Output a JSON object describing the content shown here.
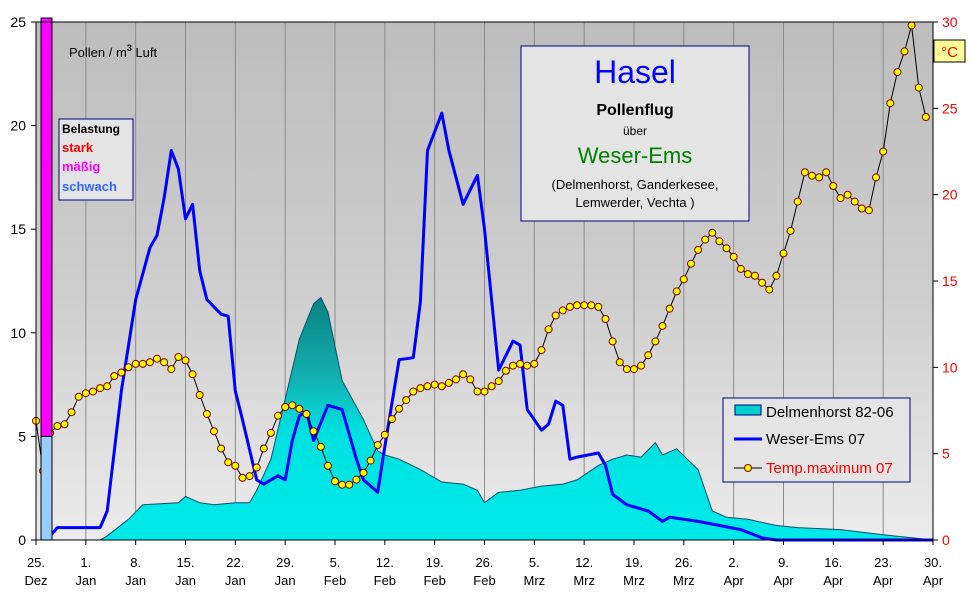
{
  "chart_data": {
    "type": "area",
    "title": "Hasel",
    "info_box": {
      "title": "Hasel",
      "line1": "Pollenflug",
      "line2": "über",
      "region": "Weser-Ems",
      "places1": "(Delmenhorst, Ganderkesee,",
      "places2": "Lemwerder, Vechta )"
    },
    "ylabel": "Pollen / m³ Luft",
    "ylabel_main": "Pollen / m",
    "ylabel_sup": "3",
    "ylabel_tail": " Luft",
    "y2label": "°C",
    "ylim": [
      0,
      25
    ],
    "y2lim": [
      0,
      30
    ],
    "y_ticks": [
      "0",
      "5",
      "10",
      "15",
      "20",
      "25"
    ],
    "y2_ticks": [
      "0",
      "5",
      "10",
      "15",
      "20",
      "25",
      "30"
    ],
    "grid": "vertical",
    "x_ticks": [
      {
        "date": "25.12",
        "label": "25.",
        "month": "Dez"
      },
      {
        "date": "1.1",
        "label": "1.",
        "month": "Jan"
      },
      {
        "date": "8.1",
        "label": "8.",
        "month": "Jan"
      },
      {
        "date": "15.1",
        "label": "15.",
        "month": "Jan"
      },
      {
        "date": "22.1",
        "label": "22.",
        "month": "Jan"
      },
      {
        "date": "29.1",
        "label": "29.",
        "month": "Jan"
      },
      {
        "date": "5.2",
        "label": "5.",
        "month": "Feb"
      },
      {
        "date": "12.2",
        "label": "12.",
        "month": "Feb"
      },
      {
        "date": "19.2",
        "label": "19.",
        "month": "Feb"
      },
      {
        "date": "26.2",
        "label": "26.",
        "month": "Feb"
      },
      {
        "date": "5.3",
        "label": "5.",
        "month": "Mrz"
      },
      {
        "date": "12.3",
        "label": "12.",
        "month": "Mrz"
      },
      {
        "date": "19.3",
        "label": "19.",
        "month": "Mrz"
      },
      {
        "date": "26.3",
        "label": "26.",
        "month": "Mrz"
      },
      {
        "date": "2.4",
        "label": "2.",
        "month": "Apr"
      },
      {
        "date": "9.4",
        "label": "9.",
        "month": "Apr"
      },
      {
        "date": "16.4",
        "label": "16.",
        "month": "Apr"
      },
      {
        "date": "23.4",
        "label": "23.",
        "month": "Apr"
      },
      {
        "date": "30.4",
        "label": "30.",
        "month": "Apr"
      }
    ],
    "belastung": {
      "title": "Belastung",
      "levels": [
        {
          "label": "stark",
          "color": "#ff0000"
        },
        {
          "label": "mäßig",
          "color": "#ff00ff"
        },
        {
          "label": "schwach",
          "color": "#3366ff"
        }
      ],
      "scale_bar": [
        {
          "from": 0,
          "to": 5,
          "color": "#99ccff"
        },
        {
          "from": 5,
          "to": 25,
          "color": "#ff00ff"
        }
      ]
    },
    "legend_position": "bottom-right",
    "series": [
      {
        "name": "Delmenhorst 82-06",
        "kind": "area",
        "color": "#00e5e5",
        "points": [
          [
            "3.1",
            0
          ],
          [
            "4.1",
            0.2
          ],
          [
            "7.1",
            1.0
          ],
          [
            "9.1",
            1.7
          ],
          [
            "14.1",
            1.8
          ],
          [
            "15.1",
            2.1
          ],
          [
            "17.1",
            1.8
          ],
          [
            "19.1",
            1.7
          ],
          [
            "22.1",
            1.8
          ],
          [
            "24.1",
            1.8
          ],
          [
            "25.1",
            2.4
          ],
          [
            "27.1",
            3.9
          ],
          [
            "29.1",
            6.8
          ],
          [
            "31.1",
            9.7
          ],
          [
            "2.2",
            11.4
          ],
          [
            "3.2",
            11.7
          ],
          [
            "4.2",
            11.0
          ],
          [
            "6.2",
            7.7
          ],
          [
            "9.2",
            5.8
          ],
          [
            "11.2",
            4.3
          ],
          [
            "12.2",
            4.1
          ],
          [
            "14.2",
            3.9
          ],
          [
            "17.2",
            3.4
          ],
          [
            "20.2",
            2.8
          ],
          [
            "23.2",
            2.7
          ],
          [
            "25.2",
            2.4
          ],
          [
            "26.2",
            1.8
          ],
          [
            "28.2",
            2.3
          ],
          [
            "3.3",
            2.4
          ],
          [
            "6.3",
            2.6
          ],
          [
            "9.3",
            2.7
          ],
          [
            "11.3",
            2.9
          ],
          [
            "14.3",
            3.6
          ],
          [
            "16.3",
            3.9
          ],
          [
            "18.3",
            4.1
          ],
          [
            "20.3",
            4.0
          ],
          [
            "22.3",
            4.7
          ],
          [
            "23.3",
            4.1
          ],
          [
            "25.3",
            4.4
          ],
          [
            "28.3",
            3.4
          ],
          [
            "29.3",
            2.4
          ],
          [
            "30.3",
            1.4
          ],
          [
            "1.4",
            1.1
          ],
          [
            "4.4",
            1.0
          ],
          [
            "8.4",
            0.7
          ],
          [
            "11.4",
            0.6
          ],
          [
            "17.4",
            0.5
          ],
          [
            "23.4",
            0.25
          ],
          [
            "30.4",
            0
          ]
        ]
      },
      {
        "name": "Weser-Ems 07",
        "kind": "line",
        "color": "#0000ff",
        "points": [
          [
            "27.12",
            0.2
          ],
          [
            "28.12",
            0.6
          ],
          [
            "3.1",
            0.6
          ],
          [
            "4.1",
            1.4
          ],
          [
            "6.1",
            7.2
          ],
          [
            "8.1",
            11.6
          ],
          [
            "10.1",
            14.1
          ],
          [
            "11.1",
            14.7
          ],
          [
            "12.1",
            16.5
          ],
          [
            "13.1",
            18.8
          ],
          [
            "14.1",
            17.9
          ],
          [
            "15.1",
            15.5
          ],
          [
            "16.1",
            16.2
          ],
          [
            "17.1",
            13.0
          ],
          [
            "18.1",
            11.6
          ],
          [
            "20.1",
            10.9
          ],
          [
            "21.1",
            10.8
          ],
          [
            "22.1",
            7.2
          ],
          [
            "23.1",
            5.8
          ],
          [
            "25.1",
            2.9
          ],
          [
            "26.1",
            2.7
          ],
          [
            "28.1",
            3.1
          ],
          [
            "29.1",
            2.9
          ],
          [
            "30.1",
            4.8
          ],
          [
            "31.1",
            6.0
          ],
          [
            "1.2",
            6.2
          ],
          [
            "2.2",
            4.8
          ],
          [
            "4.2",
            6.5
          ],
          [
            "6.2",
            6.3
          ],
          [
            "8.2",
            3.9
          ],
          [
            "9.2",
            2.9
          ],
          [
            "11.2",
            2.3
          ],
          [
            "12.2",
            4.5
          ],
          [
            "14.2",
            8.7
          ],
          [
            "16.2",
            8.8
          ],
          [
            "17.2",
            11.5
          ],
          [
            "18.2",
            18.8
          ],
          [
            "20.2",
            20.6
          ],
          [
            "21.2",
            18.8
          ],
          [
            "23.2",
            16.2
          ],
          [
            "25.2",
            17.6
          ],
          [
            "26.2",
            15.0
          ],
          [
            "28.2",
            8.2
          ],
          [
            "2.3",
            9.6
          ],
          [
            "3.3",
            9.4
          ],
          [
            "4.3",
            6.3
          ],
          [
            "6.3",
            5.3
          ],
          [
            "7.3",
            5.6
          ],
          [
            "8.3",
            6.7
          ],
          [
            "9.3",
            6.5
          ],
          [
            "10.3",
            3.9
          ],
          [
            "11.3",
            4.0
          ],
          [
            "14.3",
            4.2
          ],
          [
            "15.3",
            3.6
          ],
          [
            "16.3",
            2.2
          ],
          [
            "18.3",
            1.7
          ],
          [
            "21.3",
            1.4
          ],
          [
            "23.3",
            0.9
          ],
          [
            "24.3",
            1.1
          ],
          [
            "28.3",
            0.9
          ],
          [
            "31.3",
            0.7
          ],
          [
            "3.4",
            0.5
          ],
          [
            "6.4",
            0.1
          ],
          [
            "8.4",
            0
          ],
          [
            "30.4",
            0
          ]
        ]
      },
      {
        "name": "Temp.maximum 07",
        "kind": "line-markers",
        "axis": "right",
        "color": "#000000",
        "marker_color": "#ffff00",
        "label_color": "#ff0000",
        "points": [
          [
            "25.12",
            6.9
          ],
          [
            "26.12",
            4.0
          ],
          [
            "27.12",
            6.2
          ],
          [
            "28.12",
            6.6
          ],
          [
            "29.12",
            6.7
          ],
          [
            "30.12",
            7.4
          ],
          [
            "31.12",
            8.3
          ],
          [
            "1.1",
            8.5
          ],
          [
            "2.1",
            8.6
          ],
          [
            "3.1",
            8.8
          ],
          [
            "4.1",
            8.9
          ],
          [
            "5.1",
            9.5
          ],
          [
            "6.1",
            9.7
          ],
          [
            "7.1",
            10.0
          ],
          [
            "8.1",
            10.2
          ],
          [
            "9.1",
            10.2
          ],
          [
            "10.1",
            10.3
          ],
          [
            "11.1",
            10.5
          ],
          [
            "12.1",
            10.3
          ],
          [
            "13.1",
            9.9
          ],
          [
            "14.1",
            10.6
          ],
          [
            "15.1",
            10.4
          ],
          [
            "16.1",
            9.6
          ],
          [
            "17.1",
            8.4
          ],
          [
            "18.1",
            7.3
          ],
          [
            "19.1",
            6.3
          ],
          [
            "20.1",
            5.3
          ],
          [
            "21.1",
            4.5
          ],
          [
            "22.1",
            4.3
          ],
          [
            "23.1",
            3.6
          ],
          [
            "24.1",
            3.7
          ],
          [
            "25.1",
            4.2
          ],
          [
            "26.1",
            5.3
          ],
          [
            "27.1",
            6.2
          ],
          [
            "28.1",
            7.2
          ],
          [
            "29.1",
            7.7
          ],
          [
            "30.1",
            7.8
          ],
          [
            "31.1",
            7.6
          ],
          [
            "1.2",
            7.3
          ],
          [
            "2.2",
            6.3
          ],
          [
            "3.2",
            5.4
          ],
          [
            "4.2",
            4.3
          ],
          [
            "5.2",
            3.4
          ],
          [
            "6.2",
            3.2
          ],
          [
            "7.2",
            3.2
          ],
          [
            "8.2",
            3.5
          ],
          [
            "9.2",
            3.9
          ],
          [
            "10.2",
            4.6
          ],
          [
            "11.2",
            5.5
          ],
          [
            "12.2",
            6.1
          ],
          [
            "13.2",
            7.0
          ],
          [
            "14.2",
            7.6
          ],
          [
            "15.2",
            8.1
          ],
          [
            "16.2",
            8.6
          ],
          [
            "17.2",
            8.8
          ],
          [
            "18.2",
            8.9
          ],
          [
            "19.2",
            9.0
          ],
          [
            "20.2",
            8.9
          ],
          [
            "21.2",
            9.1
          ],
          [
            "22.2",
            9.3
          ],
          [
            "23.2",
            9.6
          ],
          [
            "24.2",
            9.3
          ],
          [
            "25.2",
            8.6
          ],
          [
            "26.2",
            8.6
          ],
          [
            "27.2",
            8.9
          ],
          [
            "28.2",
            9.2
          ],
          [
            "1.3",
            9.8
          ],
          [
            "2.3",
            10.1
          ],
          [
            "3.3",
            10.2
          ],
          [
            "4.3",
            10.1
          ],
          [
            "5.3",
            10.2
          ],
          [
            "6.3",
            11.0
          ],
          [
            "7.3",
            12.2
          ],
          [
            "8.3",
            13.0
          ],
          [
            "9.3",
            13.3
          ],
          [
            "10.3",
            13.5
          ],
          [
            "11.3",
            13.6
          ],
          [
            "12.3",
            13.6
          ],
          [
            "13.3",
            13.6
          ],
          [
            "14.3",
            13.5
          ],
          [
            "15.3",
            12.8
          ],
          [
            "16.3",
            11.5
          ],
          [
            "17.3",
            10.3
          ],
          [
            "18.3",
            9.9
          ],
          [
            "19.3",
            9.9
          ],
          [
            "20.3",
            10.1
          ],
          [
            "21.3",
            10.7
          ],
          [
            "22.3",
            11.5
          ],
          [
            "23.3",
            12.4
          ],
          [
            "24.3",
            13.4
          ],
          [
            "25.3",
            14.4
          ],
          [
            "26.3",
            15.1
          ],
          [
            "27.3",
            16.0
          ],
          [
            "28.3",
            16.8
          ],
          [
            "29.3",
            17.4
          ],
          [
            "30.3",
            17.8
          ],
          [
            "31.3",
            17.3
          ],
          [
            "1.4",
            16.9
          ],
          [
            "2.4",
            16.4
          ],
          [
            "3.4",
            15.7
          ],
          [
            "4.4",
            15.4
          ],
          [
            "5.4",
            15.3
          ],
          [
            "6.4",
            14.9
          ],
          [
            "7.4",
            14.5
          ],
          [
            "8.4",
            15.3
          ],
          [
            "9.4",
            16.6
          ],
          [
            "10.4",
            17.9
          ],
          [
            "11.4",
            19.6
          ],
          [
            "12.4",
            21.3
          ],
          [
            "13.4",
            21.1
          ],
          [
            "14.4",
            21.0
          ],
          [
            "15.4",
            21.3
          ],
          [
            "16.4",
            20.5
          ],
          [
            "17.4",
            19.8
          ],
          [
            "18.4",
            20.0
          ],
          [
            "19.4",
            19.6
          ],
          [
            "20.4",
            19.2
          ],
          [
            "21.4",
            19.1
          ],
          [
            "22.4",
            21.0
          ],
          [
            "23.4",
            22.5
          ],
          [
            "24.4",
            25.3
          ],
          [
            "25.4",
            27.1
          ],
          [
            "26.4",
            28.3
          ],
          [
            "27.4",
            29.8
          ],
          [
            "28.4",
            26.2
          ],
          [
            "29.4",
            24.5
          ]
        ]
      }
    ]
  }
}
